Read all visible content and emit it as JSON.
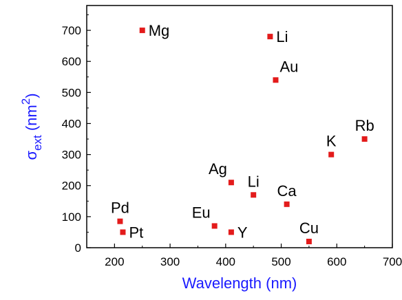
{
  "chart_data": {
    "type": "scatter",
    "title": "",
    "xlabel": "Wavelength (nm)",
    "ylabel": {
      "sigma": "σ",
      "subscript": "ext",
      "open": " (nm",
      "superscript": "2",
      "close": ")"
    },
    "xlim": [
      150,
      700
    ],
    "ylim": [
      0,
      780
    ],
    "xticks": [
      200,
      300,
      400,
      500,
      600,
      700
    ],
    "yticks": [
      0,
      100,
      200,
      300,
      400,
      500,
      600,
      700
    ],
    "grid": false,
    "legend": "none",
    "colors": {
      "marker": "#e31b1b",
      "axis_title": "#1a1aff",
      "axis": "#000000"
    },
    "points": [
      {
        "label": "Mg",
        "x": 250,
        "y": 700,
        "label_side": "right"
      },
      {
        "label": "Li",
        "x": 480,
        "y": 680,
        "label_side": "right"
      },
      {
        "label": "Au",
        "x": 490,
        "y": 540,
        "label_side": "above-right"
      },
      {
        "label": "Rb",
        "x": 650,
        "y": 350,
        "label_side": "above"
      },
      {
        "label": "K",
        "x": 590,
        "y": 300,
        "label_side": "above"
      },
      {
        "label": "Ag",
        "x": 410,
        "y": 210,
        "label_side": "above-left"
      },
      {
        "label": "Li",
        "x": 450,
        "y": 170,
        "label_side": "above"
      },
      {
        "label": "Ca",
        "x": 510,
        "y": 140,
        "label_side": "above"
      },
      {
        "label": "Pd",
        "x": 210,
        "y": 85,
        "label_side": "above"
      },
      {
        "label": "Eu",
        "x": 380,
        "y": 70,
        "label_side": "above-left"
      },
      {
        "label": "Pt",
        "x": 215,
        "y": 50,
        "label_side": "right"
      },
      {
        "label": "Y",
        "x": 410,
        "y": 50,
        "label_side": "right"
      },
      {
        "label": "Cu",
        "x": 550,
        "y": 20,
        "label_side": "above"
      }
    ]
  }
}
